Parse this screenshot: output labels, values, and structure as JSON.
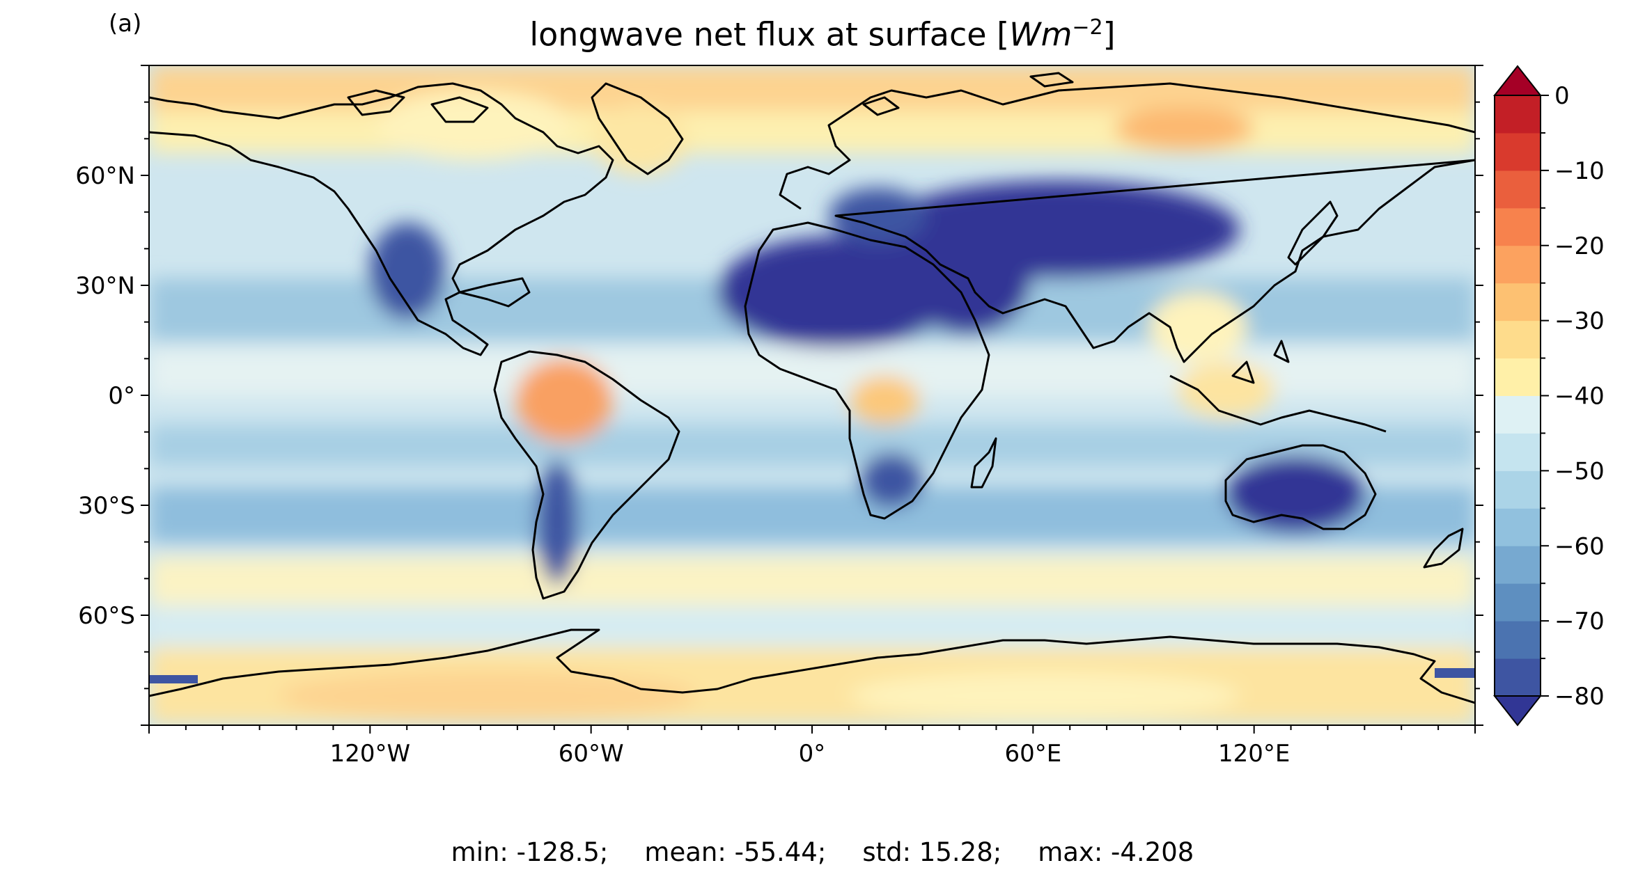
{
  "panel_label": "(a)",
  "title": {
    "prefix": "longwave net flux at surface [",
    "unit_base": "Wm",
    "unit_exp": "−2",
    "suffix": "]"
  },
  "map": {
    "projection": "PlateCarree",
    "extent_lon": [
      -180,
      180
    ],
    "extent_lat": [
      -90,
      90
    ],
    "coastlines": true,
    "lon_tick_labels": [
      {
        "lon": -120,
        "label": "120°W"
      },
      {
        "lon": -60,
        "label": "60°W"
      },
      {
        "lon": 0,
        "label": "0°"
      },
      {
        "lon": 60,
        "label": "60°E"
      },
      {
        "lon": 120,
        "label": "120°E"
      }
    ],
    "lat_tick_labels": [
      {
        "lat": 60,
        "label": "60°N"
      },
      {
        "lat": 30,
        "label": "30°N"
      },
      {
        "lat": 0,
        "label": "0°"
      },
      {
        "lat": -30,
        "label": "30°S"
      },
      {
        "lat": -60,
        "label": "60°S"
      }
    ]
  },
  "colorbar": {
    "colormap": "RdYlBu",
    "vmin": -80,
    "vmax": 0,
    "step": 5,
    "extend": "both",
    "tick_labels": [
      {
        "value": 0,
        "label": "0"
      },
      {
        "value": -10,
        "label": "−10"
      },
      {
        "value": -20,
        "label": "−20"
      },
      {
        "value": -30,
        "label": "−30"
      },
      {
        "value": -40,
        "label": "−40"
      },
      {
        "value": -50,
        "label": "−50"
      },
      {
        "value": -60,
        "label": "−60"
      },
      {
        "value": -70,
        "label": "−70"
      },
      {
        "value": -80,
        "label": "−80"
      }
    ],
    "colors": [
      "#313695",
      "#3e55a2",
      "#4b73b0",
      "#5e8fc0",
      "#77a9d0",
      "#91c1de",
      "#abd4e7",
      "#c5e4ef",
      "#def1f4",
      "#f3f8cf",
      "#fff0a8",
      "#fedc8c",
      "#fdc172",
      "#fca25f",
      "#f7824d",
      "#ea5f3d",
      "#d93a2d",
      "#c31f26",
      "#a50026"
    ]
  },
  "stats": {
    "min": "min: -128.5;",
    "mean": "mean: -55.44;",
    "std": "std: 15.28;",
    "max": "max: -4.208"
  }
}
